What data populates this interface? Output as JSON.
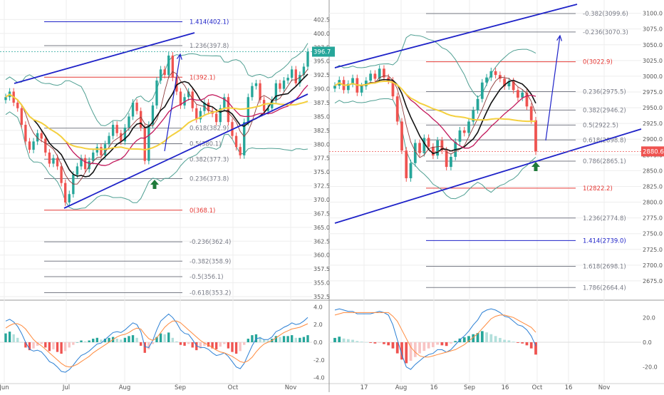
{
  "colors": {
    "bull": "#26a69a",
    "bear": "#ef5350",
    "fib_black": "#787b86",
    "fib_red": "#e53935",
    "fib_blue": "#1e22c8",
    "channel": "#1e22c8",
    "bollinger": "#4f9f92",
    "ma_black": "#111111",
    "ma_yellow": "#f4d03f",
    "ma_crimson": "#c2185b",
    "ma_brown": "#8d3b3b",
    "macd_line": "#2a7fd4",
    "signal_line": "#ff8a3d",
    "hist_pos": "#26a69a",
    "hist_pos_light": "#b2dfdb",
    "hist_neg": "#ef5350",
    "hist_neg_light": "#f8c4c4",
    "axis_text": "#555555",
    "grid": "#eeeeee",
    "last_left": "#26a69a",
    "last_right": "#ef5350",
    "arrow_up": "#1f7a3a"
  },
  "chart_data": [
    {
      "type": "candlestick",
      "x_labels": [
        "Jun",
        "Jul",
        "Aug",
        "Sep",
        "Oct",
        "Nov"
      ],
      "y_range": [
        352.5,
        405.0
      ],
      "y_ticks": [
        "402.5",
        "400.0",
        "397.5",
        "395.0",
        "392.5",
        "390.0",
        "387.5",
        "385.0",
        "382.5",
        "380.0",
        "377.5",
        "375.0",
        "372.5",
        "370.0",
        "367.5",
        "365.0",
        "362.5",
        "360.0",
        "357.5",
        "355.0",
        "352.5"
      ],
      "last_price": "396.7",
      "fib_levels": [
        {
          "label": "1.414(402.1)",
          "value": 402.1,
          "color": "blue"
        },
        {
          "label": "1.236(397.8)",
          "value": 397.8,
          "color": "black"
        },
        {
          "label": "1(392.1)",
          "value": 392.1,
          "color": "red"
        },
        {
          "label": "0.618(382.9)",
          "value": 382.9,
          "color": "black"
        },
        {
          "label": "0.5(380.1)",
          "value": 380.1,
          "color": "black"
        },
        {
          "label": "0.382(377.3)",
          "value": 377.3,
          "color": "black"
        },
        {
          "label": "0.236(373.8)",
          "value": 373.8,
          "color": "black"
        },
        {
          "label": "0(368.1)",
          "value": 368.1,
          "color": "red"
        },
        {
          "label": "-0.236(362.4)",
          "value": 362.4,
          "color": "black"
        },
        {
          "label": "-0.382(358.9)",
          "value": 358.9,
          "color": "black"
        },
        {
          "label": "-0.5(356.1)",
          "value": 356.1,
          "color": "black"
        },
        {
          "label": "-0.618(353.2)",
          "value": 353.2,
          "color": "black"
        }
      ],
      "closes": [
        388.5,
        389.5,
        387.5,
        386.5,
        383.5,
        380.5,
        379.0,
        380.5,
        382.0,
        381.0,
        378.5,
        376.5,
        377.5,
        376.0,
        373.0,
        369.5,
        371.0,
        374.5,
        376.0,
        377.5,
        375.5,
        377.0,
        378.5,
        379.5,
        378.0,
        380.0,
        381.5,
        383.5,
        382.0,
        380.5,
        383.0,
        385.0,
        387.5,
        386.0,
        383.0,
        377.0,
        383.5,
        387.0,
        391.5,
        393.5,
        392.5,
        396.0,
        392.0,
        389.5,
        387.0,
        388.5,
        389.5,
        386.5,
        384.5,
        386.0,
        387.5,
        386.0,
        385.5,
        384.0,
        386.5,
        388.5,
        384.0,
        381.5,
        379.5,
        378.0,
        384.0,
        388.5,
        390.5,
        391.0,
        388.0,
        386.0,
        386.5,
        388.0,
        391.0,
        390.0,
        391.5,
        392.0,
        393.5,
        391.0,
        392.5,
        394.0,
        396.7
      ],
      "macd_y_ticks": [
        "4.0",
        "2.0",
        "0.0",
        "-2.0",
        "-4.0"
      ],
      "macd_range": [
        -4.2,
        4.2
      ],
      "macd_hist": [
        1.0,
        1.2,
        0.9,
        0.5,
        0.0,
        -0.6,
        -0.9,
        -0.7,
        -0.4,
        -0.2,
        -0.6,
        -1.0,
        -0.8,
        -1.1,
        -1.3,
        -1.0,
        -0.6,
        -0.3,
        0.0,
        0.2,
        0.1,
        0.2,
        0.4,
        0.5,
        0.3,
        0.4,
        0.5,
        0.6,
        0.4,
        0.3,
        0.5,
        0.7,
        0.8,
        0.5,
        -0.4,
        -1.2,
        -0.8,
        -0.2,
        0.6,
        1.0,
        0.9,
        1.1,
        0.5,
        0.1,
        -0.3,
        -0.4,
        -0.2,
        -0.6,
        -0.9,
        -0.7,
        -0.4,
        -0.5,
        -0.7,
        -0.8,
        -0.5,
        -0.2,
        -0.7,
        -1.1,
        -1.3,
        -1.0,
        -0.3,
        0.4,
        0.8,
        0.9,
        0.6,
        0.3,
        0.2,
        0.4,
        0.7,
        0.6,
        0.7,
        0.7,
        0.8,
        0.5,
        0.5,
        0.6,
        0.8
      ],
      "macd_line": [
        2.4,
        2.6,
        2.3,
        1.8,
        1.0,
        0.0,
        -0.8,
        -1.0,
        -0.9,
        -1.1,
        -1.6,
        -2.2,
        -2.4,
        -2.8,
        -3.3,
        -3.4,
        -3.1,
        -2.6,
        -2.0,
        -1.5,
        -1.3,
        -1.0,
        -0.6,
        -0.2,
        -0.1,
        0.3,
        0.7,
        1.1,
        1.2,
        1.1,
        1.4,
        1.8,
        2.2,
        2.0,
        1.2,
        -0.5,
        -0.6,
        0.2,
        1.4,
        2.4,
        2.8,
        3.2,
        2.8,
        2.2,
        1.4,
        1.0,
        0.9,
        0.3,
        -0.4,
        -0.6,
        -0.6,
        -0.8,
        -1.2,
        -1.5,
        -1.4,
        -1.2,
        -1.6,
        -2.2,
        -2.8,
        -3.0,
        -2.4,
        -1.4,
        -0.4,
        0.4,
        0.5,
        0.3,
        0.3,
        0.6,
        1.2,
        1.4,
        1.7,
        1.9,
        2.2,
        2.0,
        2.1,
        2.4,
        2.8
      ],
      "signal_line": [
        1.6,
        1.9,
        2.1,
        2.1,
        1.9,
        1.5,
        0.9,
        0.3,
        -0.1,
        -0.4,
        -0.8,
        -1.2,
        -1.6,
        -2.0,
        -2.4,
        -2.7,
        -2.8,
        -2.7,
        -2.5,
        -2.2,
        -1.9,
        -1.6,
        -1.2,
        -0.9,
        -0.6,
        -0.3,
        0.0,
        0.3,
        0.6,
        0.8,
        0.9,
        1.1,
        1.4,
        1.6,
        1.5,
        0.9,
        0.4,
        0.2,
        0.5,
        1.1,
        1.7,
        2.1,
        2.4,
        2.4,
        2.2,
        1.8,
        1.4,
        1.0,
        0.6,
        0.2,
        -0.1,
        -0.3,
        -0.6,
        -0.9,
        -1.1,
        -1.2,
        -1.4,
        -1.6,
        -1.9,
        -2.2,
        -2.3,
        -2.1,
        -1.7,
        -1.1,
        -0.6,
        -0.2,
        0.0,
        0.2,
        0.5,
        0.8,
        1.1,
        1.3,
        1.5,
        1.6,
        1.7,
        1.9,
        2.1
      ]
    },
    {
      "type": "candlestick",
      "x_labels": [
        "17",
        "Aug",
        "16",
        "Sep",
        "16",
        "Oct",
        "16",
        "Nov"
      ],
      "y_range": [
        2650.0,
        3112.0
      ],
      "y_ticks": [
        "3100.0",
        "3075.0",
        "3050.0",
        "3025.0",
        "3000.0",
        "2975.0",
        "2950.0",
        "2925.0",
        "2900.0",
        "2875.0",
        "2850.0",
        "2825.0",
        "2800.0",
        "2775.0",
        "2750.0",
        "2725.0",
        "2700.0",
        "2675.0"
      ],
      "last_price": "2880.6",
      "fib_levels": [
        {
          "label": "-0.382(3099.6)",
          "value": 3099.6,
          "color": "black"
        },
        {
          "label": "-0.236(3070.3)",
          "value": 3070.3,
          "color": "black"
        },
        {
          "label": "0(3022.9)",
          "value": 3022.9,
          "color": "red"
        },
        {
          "label": "0.236(2975.5)",
          "value": 2975.5,
          "color": "black"
        },
        {
          "label": "0.382(2946.2)",
          "value": 2946.2,
          "color": "black"
        },
        {
          "label": "0.5(2922.5)",
          "value": 2922.5,
          "color": "black"
        },
        {
          "label": "0.618(2898.8)",
          "value": 2898.8,
          "color": "black"
        },
        {
          "label": "0.786(2865.1)",
          "value": 2865.1,
          "color": "black"
        },
        {
          "label": "1(2822.2)",
          "value": 2822.2,
          "color": "red"
        },
        {
          "label": "1.236(2774.8)",
          "value": 2774.8,
          "color": "black"
        },
        {
          "label": "1.414(2739.0)",
          "value": 2739.0,
          "color": "blue"
        },
        {
          "label": "1.618(2698.1)",
          "value": 2698.1,
          "color": "black"
        },
        {
          "label": "1.786(2664.4)",
          "value": 2664.4,
          "color": "black"
        }
      ],
      "closes": [
        2985,
        2994,
        2978,
        2988,
        2997,
        2974,
        2984,
        2993,
        3004,
        2996,
        3012,
        2998,
        2993,
        2968,
        2928,
        2882,
        2838,
        2862,
        2894,
        2878,
        2902,
        2888,
        2874,
        2898,
        2882,
        2856,
        2872,
        2896,
        2914,
        2910,
        2928,
        2946,
        2964,
        2990,
        2998,
        3008,
        3002,
        2996,
        2984,
        2992,
        2978,
        2966,
        2974,
        2952,
        2930,
        2880.6
      ],
      "macd_y_ticks": [
        "20.0",
        "0.0",
        "-20.0"
      ],
      "macd_range": [
        -30,
        30
      ],
      "macd_hist": [
        3.5,
        4.5,
        3.0,
        2.5,
        2.0,
        1.0,
        0.5,
        0.0,
        -0.5,
        -1.0,
        -0.5,
        -1.5,
        -2.5,
        -5.0,
        -9.0,
        -14.0,
        -17.0,
        -15.0,
        -12.0,
        -9.0,
        -7.0,
        -5.0,
        -4.0,
        -2.0,
        -2.5,
        -3.0,
        -1.0,
        1.0,
        3.0,
        4.0,
        5.0,
        6.5,
        7.5,
        9.0,
        8.0,
        6.5,
        5.0,
        3.5,
        2.0,
        1.5,
        0.5,
        -0.5,
        -1.0,
        -2.5,
        -5.0,
        -10.0
      ],
      "macd_line": [
        26,
        27,
        26,
        25,
        25,
        23,
        23,
        23,
        23,
        24,
        25,
        24,
        22,
        14,
        2,
        -10,
        -20,
        -22,
        -18,
        -15,
        -12,
        -10,
        -9,
        -6,
        -6,
        -8,
        -6,
        -2,
        2,
        5,
        9,
        14,
        18,
        24,
        26,
        27,
        26,
        24,
        21,
        20,
        17,
        14,
        13,
        10,
        5,
        -3
      ],
      "signal_line": [
        22,
        23,
        24,
        24,
        24,
        24,
        24,
        24,
        24,
        24,
        24,
        24,
        24,
        21,
        17,
        10,
        3,
        -4,
        -8,
        -11,
        -12,
        -12,
        -11,
        -10,
        -9,
        -8,
        -7,
        -6,
        -4,
        -2,
        1,
        4,
        7,
        11,
        15,
        19,
        21,
        22,
        22,
        21,
        20,
        18,
        16,
        14,
        12,
        8
      ]
    }
  ]
}
